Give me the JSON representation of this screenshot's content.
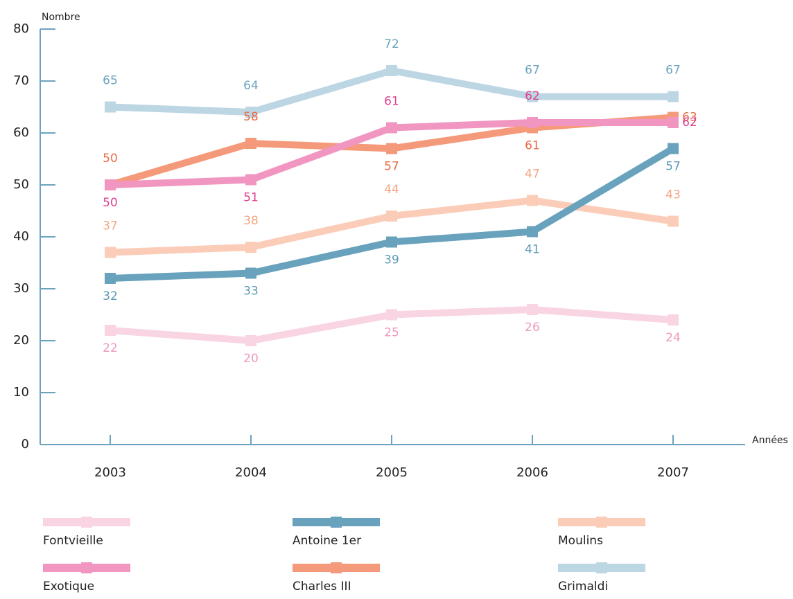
{
  "chart_data": {
    "type": "line",
    "y_label": "Nombre",
    "x_label": "Années",
    "x": [
      2003,
      2004,
      2005,
      2006,
      2007
    ],
    "xlim": [
      2002.5,
      2007.5
    ],
    "ylim": [
      0,
      80
    ],
    "yticks": [
      0,
      10,
      20,
      30,
      40,
      50,
      60,
      70,
      80
    ],
    "grid": false,
    "series": [
      {
        "name": "Fontvieille",
        "color": "#f9d4e3",
        "label_color": "#ee98bf",
        "values": [
          22,
          20,
          25,
          26,
          24
        ]
      },
      {
        "name": "Antoine 1er",
        "color": "#68a2bc",
        "label_color": "#5b9ab5",
        "values": [
          32,
          33,
          39,
          41,
          57
        ]
      },
      {
        "name": "Moulins",
        "color": "#fbcdb8",
        "label_color": "#f3a684",
        "values": [
          37,
          38,
          44,
          47,
          43
        ]
      },
      {
        "name": "Exotique",
        "color": "#f196c1",
        "label_color": "#e0408f",
        "values": [
          50,
          51,
          61,
          62,
          62
        ]
      },
      {
        "name": "Charles III",
        "color": "#f5997b",
        "label_color": "#e86b45",
        "values": [
          50,
          58,
          57,
          61,
          63
        ]
      },
      {
        "name": "Grimaldi",
        "color": "#bdd6e3",
        "label_color": "#6ba3bd",
        "values": [
          65,
          64,
          72,
          67,
          67
        ]
      }
    ]
  }
}
